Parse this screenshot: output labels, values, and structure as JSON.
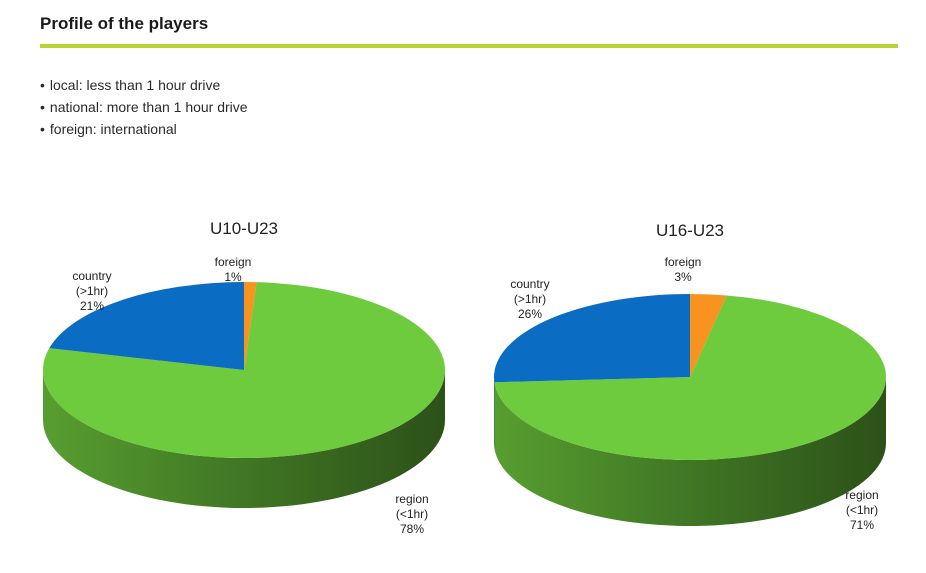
{
  "header": {
    "title": "Profile of the players"
  },
  "bullets": [
    "local: less than 1 hour drive",
    "national: more than 1 hour drive",
    "foreign: international"
  ],
  "colors": {
    "accent_rule": "#b5d334",
    "region": "#6fcb3e",
    "country": "#0a6cc2",
    "foreign": "#f7931e"
  },
  "chart_data": [
    {
      "type": "pie",
      "style": "3d",
      "title": "U10-U23",
      "slices": [
        {
          "name": "foreign",
          "value": 1,
          "label_lines": [
            "foreign",
            "1%"
          ],
          "color": "#f7931e"
        },
        {
          "name": "region",
          "value": 78,
          "label_lines": [
            "region",
            "(<1hr)",
            "78%"
          ],
          "color": "#6fcb3e"
        },
        {
          "name": "country",
          "value": 21,
          "label_lines": [
            "country",
            "(>1hr)",
            "21%"
          ],
          "color": "#0a6cc2"
        }
      ]
    },
    {
      "type": "pie",
      "style": "3d",
      "title": "U16-U23",
      "slices": [
        {
          "name": "foreign",
          "value": 3,
          "label_lines": [
            "foreign",
            "3%"
          ],
          "color": "#f7931e"
        },
        {
          "name": "region",
          "value": 71,
          "label_lines": [
            "region",
            "(<1hr)",
            "71%"
          ],
          "color": "#6fcb3e"
        },
        {
          "name": "country",
          "value": 26,
          "label_lines": [
            "country",
            "(>1hr)",
            "26%"
          ],
          "color": "#0a6cc2"
        }
      ]
    }
  ]
}
